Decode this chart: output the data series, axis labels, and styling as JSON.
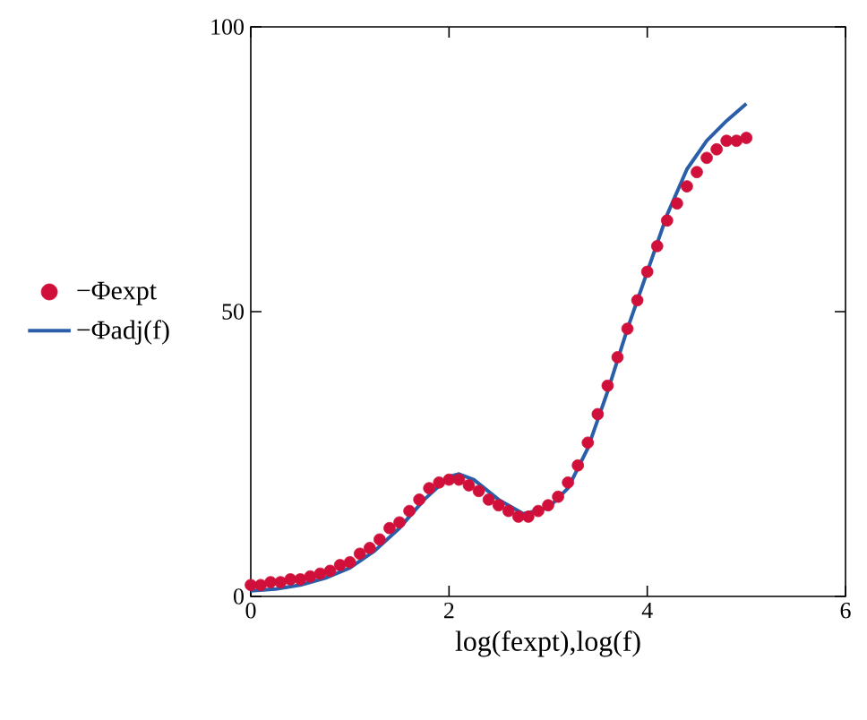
{
  "chart_data": {
    "type": "line",
    "xlabel": "log(fexpt),log(f)",
    "xlim": [
      0,
      6
    ],
    "ylim": [
      0,
      100
    ],
    "xticks": [
      0,
      2,
      4,
      6
    ],
    "yticks": [
      0,
      50,
      100
    ],
    "grid": false,
    "legend": "left",
    "series": [
      {
        "name": "−Φexpt",
        "type": "scatter",
        "marker": "circle",
        "color": "#d0103a",
        "x": [
          0,
          0.1,
          0.2,
          0.3,
          0.4,
          0.5,
          0.6,
          0.7,
          0.8,
          0.9,
          1.0,
          1.1,
          1.2,
          1.3,
          1.4,
          1.5,
          1.6,
          1.7,
          1.8,
          1.9,
          2.0,
          2.1,
          2.2,
          2.3,
          2.4,
          2.5,
          2.6,
          2.7,
          2.8,
          2.9,
          3.0,
          3.1,
          3.2,
          3.3,
          3.4,
          3.5,
          3.6,
          3.7,
          3.8,
          3.9,
          4.0,
          4.1,
          4.2,
          4.3,
          4.4,
          4.5,
          4.6,
          4.7,
          4.8,
          4.9,
          5.0
        ],
        "values": [
          2,
          2,
          2.5,
          2.5,
          3,
          3,
          3.5,
          4,
          4.5,
          5.5,
          6,
          7.5,
          8.5,
          10,
          12,
          13,
          15,
          17,
          19,
          20,
          20.5,
          20.5,
          19.5,
          18.5,
          17,
          16,
          15,
          14,
          14,
          15,
          16,
          17.5,
          20,
          23,
          27,
          32,
          37,
          42,
          47,
          52,
          57,
          61.5,
          66,
          69,
          72,
          74.5,
          77,
          78.5,
          80,
          80,
          80.5
        ]
      },
      {
        "name": "−Φadj(f)",
        "marker": "none",
        "line_style": "solid",
        "color": "#2a5ea8",
        "x": [
          0,
          0.25,
          0.5,
          0.75,
          1.0,
          1.25,
          1.5,
          1.75,
          2.0,
          2.1,
          2.25,
          2.5,
          2.75,
          3.0,
          3.2,
          3.4,
          3.6,
          3.8,
          4.0,
          4.2,
          4.4,
          4.6,
          4.8,
          5.0
        ],
        "values": [
          1,
          1.3,
          2,
          3.2,
          5,
          8,
          12,
          17,
          21,
          21.5,
          20.5,
          17,
          14.5,
          15.5,
          19,
          26,
          36,
          47,
          57,
          67,
          75,
          80,
          83.5,
          86.5
        ]
      }
    ]
  }
}
